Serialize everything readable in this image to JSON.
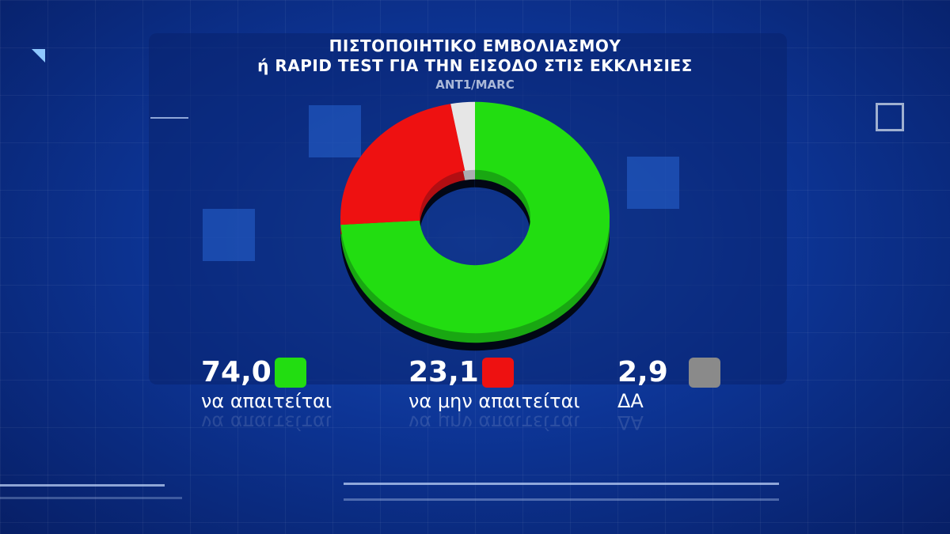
{
  "header": {
    "title_line1": "ΠΙΣΤΟΠΟΙΗΤΙΚΟ ΕΜΒΟΛΙΑΣΜΟΥ",
    "title_line2": "ή RAPID TEST ΓΙΑ ΤΗΝ ΕΙΣΟΔΟ ΣΤΙΣ ΕΚΚΛΗΣΙΕΣ",
    "source": "ANT1/MARC"
  },
  "chart_data": {
    "type": "pie",
    "variant": "donut-3d",
    "title": "ΠΙΣΤΟΠΟΙΗΤΙΚΟ ΕΜΒΟΛΙΑΣΜΟΥ ή RAPID TEST ΓΙΑ ΤΗΝ ΕΙΣΟΔΟ ΣΤΙΣ ΕΚΚΛΗΣΙΕΣ",
    "slices": [
      {
        "label": "να απαιτείται",
        "value": 74.0,
        "value_text": "74,0",
        "color": "#22dd11"
      },
      {
        "label": "να μην απαιτείται",
        "value": 23.1,
        "value_text": "23,1",
        "color": "#ee1111"
      },
      {
        "label": "ΔΑ",
        "value": 2.9,
        "value_text": "2,9",
        "color": "#e6e6e6",
        "legend_color": "#8a8a8a"
      }
    ],
    "legend_placement": "bottom"
  }
}
